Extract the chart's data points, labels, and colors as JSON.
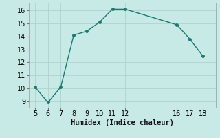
{
  "x": [
    5,
    6,
    7,
    8,
    9,
    10,
    11,
    12,
    16,
    17,
    18
  ],
  "y": [
    10.1,
    8.9,
    10.1,
    14.1,
    14.4,
    15.1,
    16.1,
    16.1,
    14.9,
    13.8,
    12.5
  ],
  "line_color": "#1a7a6e",
  "bg_color": "#c8eae6",
  "grid_color": "#aed4d0",
  "xlabel": "Humidex (Indice chaleur)",
  "xlim": [
    4.5,
    19.0
  ],
  "ylim": [
    8.5,
    16.6
  ],
  "xticks": [
    5,
    6,
    7,
    8,
    9,
    10,
    11,
    12,
    16,
    17,
    18
  ],
  "yticks": [
    9,
    10,
    11,
    12,
    13,
    14,
    15,
    16
  ],
  "xlabel_fontsize": 7.5,
  "tick_fontsize": 7.0,
  "fig_width": 3.2,
  "fig_height": 2.0,
  "dpi": 100
}
